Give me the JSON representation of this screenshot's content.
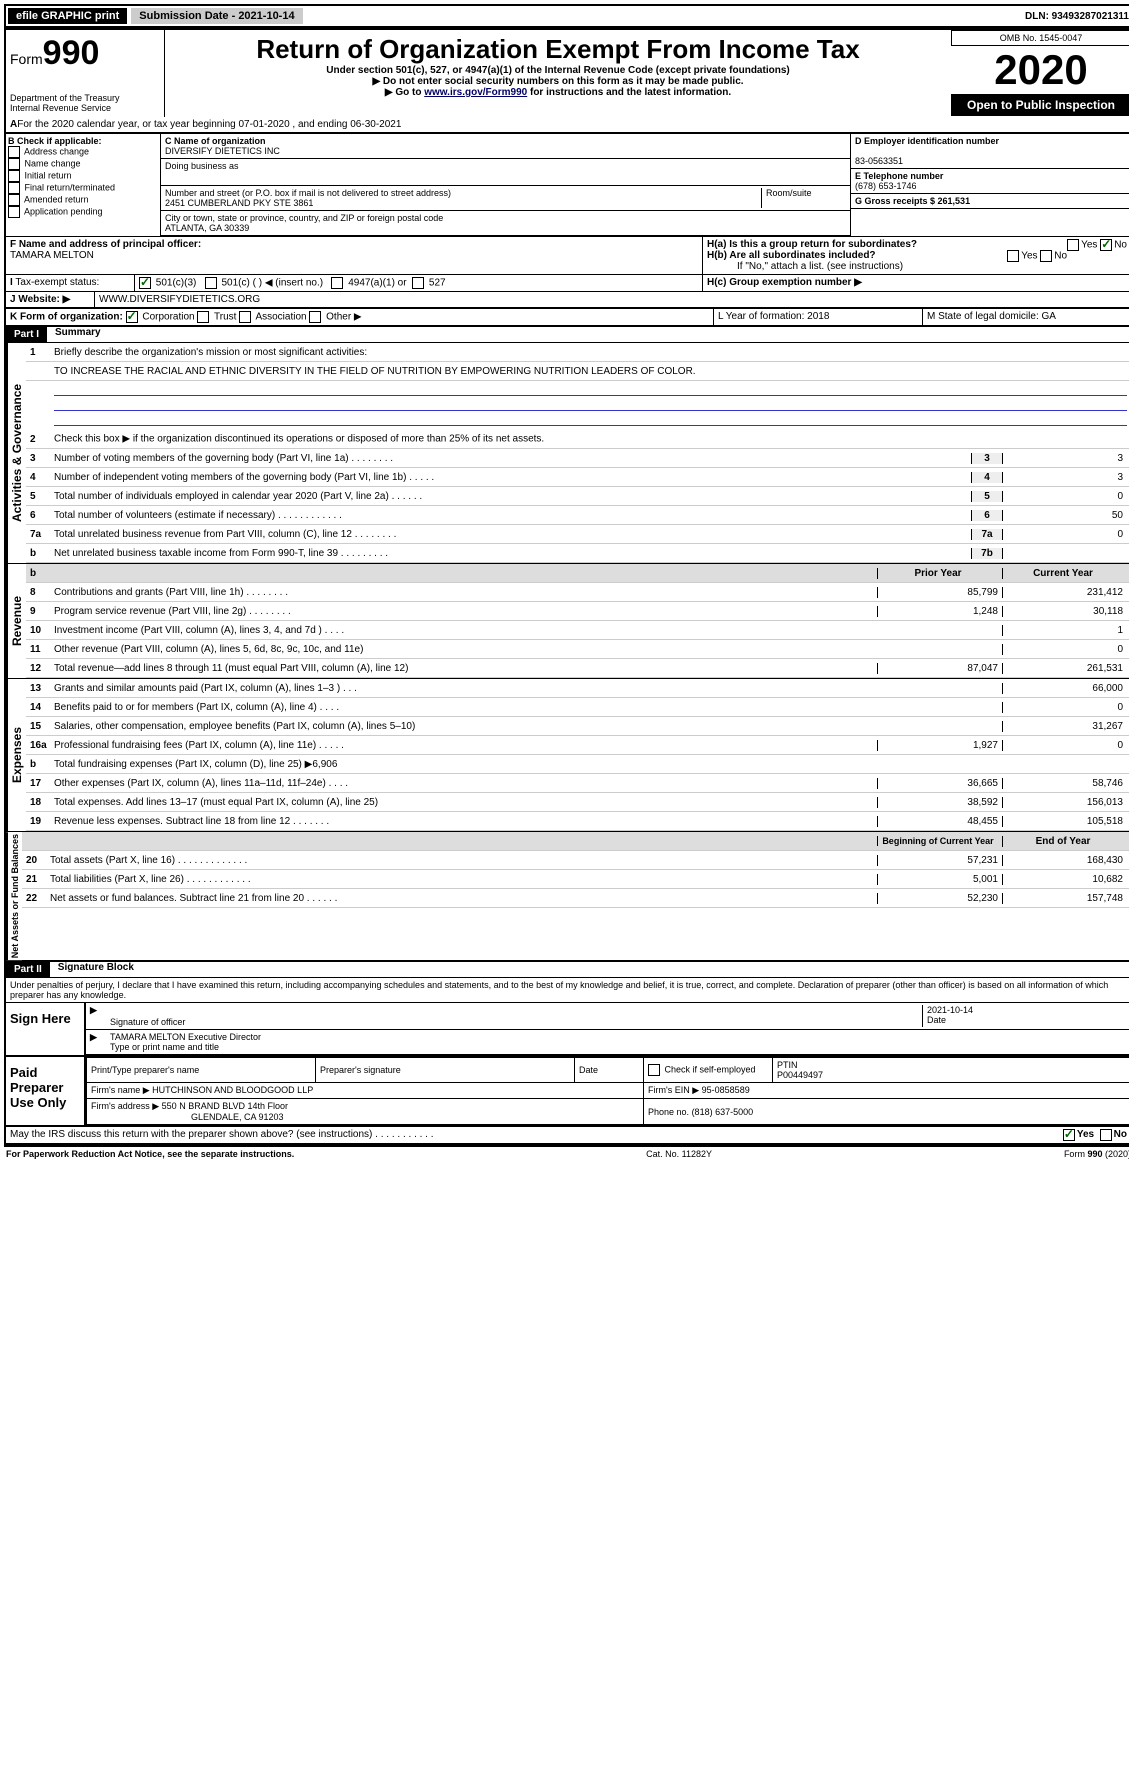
{
  "topbar": {
    "efile_label": "efile GRAPHIC print",
    "submission_label": "Submission Date - 2021-10-14",
    "dln": "DLN: 93493287021311"
  },
  "header": {
    "form_label": "Form",
    "form_number": "990",
    "dept": "Department of the Treasury",
    "irs": "Internal Revenue Service",
    "main_title": "Return of Organization Exempt From Income Tax",
    "subtitle": "Under section 501(c), 527, or 4947(a)(1) of the Internal Revenue Code (except private foundations)",
    "warn1": "▶ Do not enter social security numbers on this form as it may be made public.",
    "warn2_pre": "▶ Go to ",
    "warn2_link": "www.irs.gov/Form990",
    "warn2_post": " for instructions and the latest information.",
    "omb": "OMB No. 1545-0047",
    "year": "2020",
    "open_public": "Open to Public Inspection"
  },
  "line_a": "For the 2020 calendar year, or tax year beginning 07-01-2020     , and ending 06-30-2021",
  "block_b": {
    "title": "B Check if applicable:",
    "opts": [
      "Address change",
      "Name change",
      "Initial return",
      "Final return/terminated",
      "Amended return",
      "Application pending"
    ],
    "c_label": "C Name of organization",
    "c_val": "DIVERSIFY DIETETICS INC",
    "dba": "Doing business as",
    "addr_label": "Number and street (or P.O. box if mail is not delivered to street address)",
    "room": "Room/suite",
    "addr": "2451 CUMBERLAND PKY STE 3861",
    "city_label": "City or town, state or province, country, and ZIP or foreign postal code",
    "city": "ATLANTA, GA  30339",
    "d_label": "D Employer identification number",
    "d_val": "83-0563351",
    "e_label": "E Telephone number",
    "e_val": "(678) 653-1746",
    "g_label": "G Gross receipts $ 261,531",
    "f_label": "F  Name and address of principal officer:",
    "f_val": "TAMARA MELTON",
    "ha": "H(a)  Is this a group return for subordinates?",
    "hb": "H(b)  Are all subordinates included?",
    "hb_note": "If \"No,\" attach a list. (see instructions)",
    "hc": "H(c)  Group exemption number ▶",
    "yes": "Yes",
    "no": "No"
  },
  "line_i": {
    "label": "Tax-exempt status:",
    "c3": "501(c)(3)",
    "c_blank": "501(c) (   ) ◀ (insert no.)",
    "a1": "4947(a)(1) or",
    "s527": "527"
  },
  "line_j": {
    "label": "Website: ▶",
    "val": "WWW.DIVERSIFYDIETETICS.ORG"
  },
  "line_k": {
    "label": "K Form of organization:",
    "corp": "Corporation",
    "trust": "Trust",
    "assoc": "Association",
    "other": "Other ▶",
    "l": "L Year of formation: 2018",
    "m": "M State of legal domicile: GA"
  },
  "part1": {
    "hdr": "Part I",
    "title": "Summary",
    "q1": "Briefly describe the organization's mission or most significant activities:",
    "q1_val": "TO INCREASE THE RACIAL AND ETHNIC DIVERSITY IN THE FIELD OF NUTRITION BY EMPOWERING NUTRITION LEADERS OF COLOR.",
    "q2": "Check this box ▶          if the organization discontinued its operations or disposed of more than 25% of its net assets.",
    "rows_simple": [
      {
        "n": "3",
        "t": "Number of voting members of the governing body (Part VI, line 1a)  .    .    .    .    .    .    .    .",
        "box": "3",
        "v": "3"
      },
      {
        "n": "4",
        "t": "Number of independent voting members of the governing body (Part VI, line 1b)   .    .    .    .    .",
        "box": "4",
        "v": "3"
      },
      {
        "n": "5",
        "t": "Total number of individuals employed in calendar year 2020 (Part V, line 2a)   .    .    .    .    .    .",
        "box": "5",
        "v": "0"
      },
      {
        "n": "6",
        "t": "Total number of volunteers (estimate if necessary)   .    .    .    .    .    .    .    .    .    .    .    .",
        "box": "6",
        "v": "50"
      },
      {
        "n": "7a",
        "t": "Total unrelated business revenue from Part VIII, column (C), line 12  .    .    .    .    .    .    .    .",
        "box": "7a",
        "v": "0"
      },
      {
        "n": "b",
        "t": "Net unrelated business taxable income from Form 990-T, line 39  .    .    .    .    .    .    .    .    .",
        "box": "7b",
        "v": ""
      }
    ],
    "col_hdr_prior": "Prior Year",
    "col_hdr_curr": "Current Year",
    "rows_rev": [
      {
        "n": "8",
        "t": "Contributions and grants (Part VIII, line 1h)   .    .    .    .    .    .    .    .",
        "p": "85,799",
        "c": "231,412"
      },
      {
        "n": "9",
        "t": "Program service revenue (Part VIII, line 2g)   .    .    .    .    .    .    .    .",
        "p": "1,248",
        "c": "30,118"
      },
      {
        "n": "10",
        "t": "Investment income (Part VIII, column (A), lines 3, 4, and 7d )   .    .    .    .",
        "p": "",
        "c": "1"
      },
      {
        "n": "11",
        "t": "Other revenue (Part VIII, column (A), lines 5, 6d, 8c, 9c, 10c, and 11e)",
        "p": "",
        "c": "0"
      },
      {
        "n": "12",
        "t": "Total revenue—add lines 8 through 11 (must equal Part VIII, column (A), line 12)",
        "p": "87,047",
        "c": "261,531"
      }
    ],
    "rows_exp": [
      {
        "n": "13",
        "t": "Grants and similar amounts paid (Part IX, column (A), lines 1–3 )   .    .    .",
        "p": "",
        "c": "66,000"
      },
      {
        "n": "14",
        "t": "Benefits paid to or for members (Part IX, column (A), line 4)   .    .    .    .",
        "p": "",
        "c": "0"
      },
      {
        "n": "15",
        "t": "Salaries, other compensation, employee benefits (Part IX, column (A), lines 5–10)",
        "p": "",
        "c": "31,267"
      },
      {
        "n": "16a",
        "t": "Professional fundraising fees (Part IX, column (A), line 11e)   .    .    .    .    .",
        "p": "1,927",
        "c": "0"
      },
      {
        "n": "b",
        "t": "Total fundraising expenses (Part IX, column (D), line 25) ▶6,906",
        "p": "SHADE",
        "c": "SHADE"
      },
      {
        "n": "17",
        "t": "Other expenses (Part IX, column (A), lines 11a–11d, 11f–24e)   .    .    .    .",
        "p": "36,665",
        "c": "58,746"
      },
      {
        "n": "18",
        "t": "Total expenses. Add lines 13–17 (must equal Part IX, column (A), line 25)",
        "p": "38,592",
        "c": "156,013"
      },
      {
        "n": "19",
        "t": "Revenue less expenses. Subtract line 18 from line 12  .    .    .    .    .    .    .",
        "p": "48,455",
        "c": "105,518"
      }
    ],
    "col_hdr_begin": "Beginning of Current Year",
    "col_hdr_end": "End of Year",
    "rows_net": [
      {
        "n": "20",
        "t": "Total assets (Part X, line 16)  .    .    .    .    .    .    .    .    .    .    .    .    .",
        "p": "57,231",
        "c": "168,430"
      },
      {
        "n": "21",
        "t": "Total liabilities (Part X, line 26)  .    .    .    .    .    .    .    .    .    .    .    .",
        "p": "5,001",
        "c": "10,682"
      },
      {
        "n": "22",
        "t": "Net assets or fund balances. Subtract line 21 from line 20  .    .    .    .    .    .",
        "p": "52,230",
        "c": "157,748"
      }
    ],
    "side_ag": "Activities & Governance",
    "side_rev": "Revenue",
    "side_exp": "Expenses",
    "side_net": "Net Assets or Fund Balances"
  },
  "part2": {
    "hdr": "Part II",
    "title": "Signature Block",
    "decl": "Under penalties of perjury, I declare that I have examined this return, including accompanying schedules and statements, and to the best of my knowledge and belief, it is true, correct, and complete. Declaration of preparer (other than officer) is based on all information of which preparer has any knowledge.",
    "sign_here": "Sign Here",
    "sig_officer": "Signature of officer",
    "date_val": "2021-10-14",
    "date_lbl": "Date",
    "name_val": "TAMARA MELTON  Executive Director",
    "name_lbl": "Type or print name and title",
    "paid": "Paid Preparer Use Only",
    "pt_name_lbl": "Print/Type preparer's name",
    "pt_sig_lbl": "Preparer's signature",
    "pt_date_lbl": "Date",
    "pt_check": "Check          if self-employed",
    "ptin_lbl": "PTIN",
    "ptin_val": "P00449497",
    "firm_name_lbl": "Firm's name     ▶",
    "firm_name": "HUTCHINSON AND BLOODGOOD LLP",
    "firm_ein_lbl": "Firm's EIN ▶",
    "firm_ein": "95-0858589",
    "firm_addr_lbl": "Firm's address ▶",
    "firm_addr1": "550 N BRAND BLVD 14th Floor",
    "firm_addr2": "GLENDALE, CA  91203",
    "phone_lbl": "Phone no.",
    "phone": "(818) 637-5000",
    "discuss": "May the IRS discuss this return with the preparer shown above? (see instructions)    .    .    .    .    .    .    .    .    .    .    .",
    "yes": "Yes",
    "no": "No"
  },
  "footer": {
    "left": "For Paperwork Reduction Act Notice, see the separate instructions.",
    "mid": "Cat. No. 11282Y",
    "right": "Form 990 (2020)"
  }
}
